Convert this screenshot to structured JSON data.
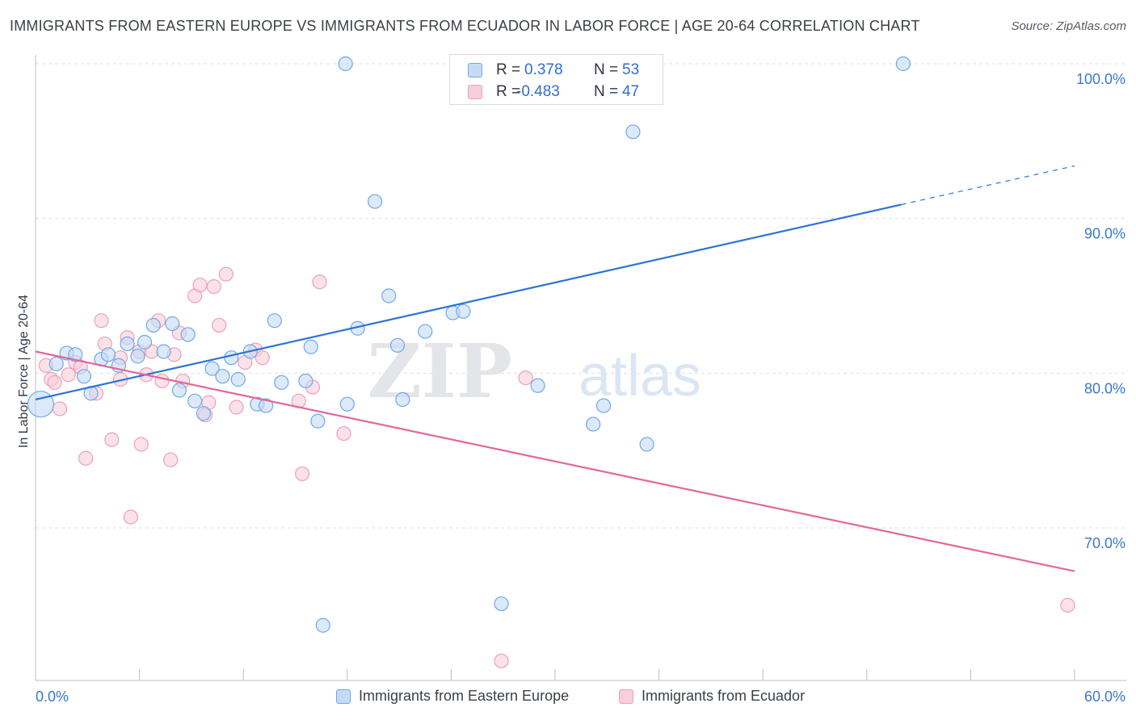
{
  "header": {
    "title": "IMMIGRANTS FROM EASTERN EUROPE VS IMMIGRANTS FROM ECUADOR IN LABOR FORCE | AGE 20-64 CORRELATION CHART",
    "source": "Source: ZipAtlas.com"
  },
  "watermark": {
    "zip": "ZIP",
    "atlas": "atlas"
  },
  "stats_box": {
    "rows": [
      {
        "r_label": "R =",
        "r_value": "0.378",
        "n_label": "N =",
        "n_value": "53",
        "color": "#6fa8e8"
      },
      {
        "r_label": "R =",
        "r_value": "-0.483",
        "n_label": "N =",
        "n_value": "47",
        "color": "#f2a7c0"
      }
    ]
  },
  "legend": {
    "items": [
      {
        "label": "Immigrants from Eastern Europe",
        "color": "#6fa8e8"
      },
      {
        "label": "Immigrants from Ecuador",
        "color": "#f2a7c0"
      }
    ]
  },
  "colors": {
    "blue_fill": "#c5dbf5",
    "blue_stroke": "#6fa8e8",
    "blue_line": "#2b74d4",
    "pink_fill": "#f9cedb",
    "pink_stroke": "#ee9fb9",
    "pink_line": "#e2679a",
    "axis_text": "#3a78cc",
    "grid": "#dcdfe4"
  },
  "chart_data": {
    "type": "scatter",
    "title": "IMMIGRANTS FROM EASTERN EUROPE VS IMMIGRANTS FROM ECUADOR IN LABOR FORCE | AGE 20-64 CORRELATION CHART",
    "xlabel": "",
    "ylabel": "In Labor Force | Age 20-64",
    "xlim": [
      0,
      60
    ],
    "ylim": [
      60.5,
      101.5
    ],
    "x_tick_labels": [
      "0.0%",
      "60.0%"
    ],
    "y_ticks": [
      70,
      80,
      90,
      100
    ],
    "y_tick_labels": [
      "70.0%",
      "80.0%",
      "90.0%",
      "100.0%"
    ],
    "grid": true,
    "legend_position": "bottom",
    "series": [
      {
        "name": "Immigrants from Eastern Europe",
        "r": 0.378,
        "n": 53,
        "trend": {
          "x_start": 0,
          "y_start": 78.3,
          "x_solid_end": 50,
          "y_solid_end": 90.9,
          "x_dash_end": 60,
          "y_dash_end": 93.4
        },
        "points": [
          {
            "x": 0.3,
            "y": 78.0,
            "big": true
          },
          {
            "x": 1.2,
            "y": 80.6
          },
          {
            "x": 1.8,
            "y": 81.3
          },
          {
            "x": 2.3,
            "y": 81.2
          },
          {
            "x": 2.8,
            "y": 79.8
          },
          {
            "x": 3.2,
            "y": 78.7
          },
          {
            "x": 3.8,
            "y": 80.9
          },
          {
            "x": 4.2,
            "y": 81.2
          },
          {
            "x": 4.8,
            "y": 80.5
          },
          {
            "x": 5.3,
            "y": 81.9
          },
          {
            "x": 5.9,
            "y": 81.1
          },
          {
            "x": 6.3,
            "y": 82.0
          },
          {
            "x": 6.8,
            "y": 83.1
          },
          {
            "x": 7.4,
            "y": 81.4
          },
          {
            "x": 7.9,
            "y": 83.2
          },
          {
            "x": 8.3,
            "y": 78.9
          },
          {
            "x": 8.8,
            "y": 82.5
          },
          {
            "x": 9.2,
            "y": 78.2
          },
          {
            "x": 9.7,
            "y": 77.4
          },
          {
            "x": 10.2,
            "y": 80.3
          },
          {
            "x": 10.8,
            "y": 79.8
          },
          {
            "x": 11.3,
            "y": 81.0
          },
          {
            "x": 11.7,
            "y": 79.6
          },
          {
            "x": 12.4,
            "y": 81.4
          },
          {
            "x": 12.8,
            "y": 78.0
          },
          {
            "x": 13.3,
            "y": 77.9
          },
          {
            "x": 13.8,
            "y": 83.4
          },
          {
            "x": 14.2,
            "y": 79.4
          },
          {
            "x": 15.6,
            "y": 79.5
          },
          {
            "x": 15.9,
            "y": 81.7
          },
          {
            "x": 16.3,
            "y": 76.9
          },
          {
            "x": 16.6,
            "y": 63.7
          },
          {
            "x": 17.9,
            "y": 100.0
          },
          {
            "x": 18.0,
            "y": 78.0
          },
          {
            "x": 18.6,
            "y": 82.9
          },
          {
            "x": 19.6,
            "y": 91.1
          },
          {
            "x": 20.4,
            "y": 85.0
          },
          {
            "x": 20.9,
            "y": 81.8
          },
          {
            "x": 21.2,
            "y": 78.3
          },
          {
            "x": 22.5,
            "y": 82.7
          },
          {
            "x": 24.1,
            "y": 83.9
          },
          {
            "x": 24.7,
            "y": 84.0
          },
          {
            "x": 26.9,
            "y": 65.1
          },
          {
            "x": 29.0,
            "y": 79.2
          },
          {
            "x": 31.7,
            "y": 100.0
          },
          {
            "x": 32.2,
            "y": 76.7
          },
          {
            "x": 32.8,
            "y": 77.9
          },
          {
            "x": 34.5,
            "y": 95.6
          },
          {
            "x": 35.3,
            "y": 75.4
          },
          {
            "x": 50.1,
            "y": 100.0
          }
        ]
      },
      {
        "name": "Immigrants from Ecuador",
        "r": -0.483,
        "n": 47,
        "trend": {
          "x_start": 0,
          "y_start": 81.4,
          "x_end": 60,
          "y_end": 67.2
        },
        "points": [
          {
            "x": 0.6,
            "y": 80.5
          },
          {
            "x": 0.9,
            "y": 79.6
          },
          {
            "x": 1.1,
            "y": 79.4
          },
          {
            "x": 1.4,
            "y": 77.7
          },
          {
            "x": 1.9,
            "y": 79.9
          },
          {
            "x": 2.3,
            "y": 80.7
          },
          {
            "x": 2.6,
            "y": 80.4
          },
          {
            "x": 2.9,
            "y": 74.5
          },
          {
            "x": 3.5,
            "y": 78.7
          },
          {
            "x": 3.8,
            "y": 83.4
          },
          {
            "x": 4.0,
            "y": 81.9
          },
          {
            "x": 4.4,
            "y": 75.7
          },
          {
            "x": 4.9,
            "y": 81.0
          },
          {
            "x": 4.9,
            "y": 79.6
          },
          {
            "x": 5.3,
            "y": 82.3
          },
          {
            "x": 5.5,
            "y": 70.7
          },
          {
            "x": 6.0,
            "y": 81.4
          },
          {
            "x": 6.1,
            "y": 75.4
          },
          {
            "x": 6.4,
            "y": 79.9
          },
          {
            "x": 6.7,
            "y": 81.4
          },
          {
            "x": 7.1,
            "y": 83.4
          },
          {
            "x": 7.3,
            "y": 79.5
          },
          {
            "x": 7.8,
            "y": 74.4
          },
          {
            "x": 8.0,
            "y": 81.2
          },
          {
            "x": 8.3,
            "y": 82.6
          },
          {
            "x": 8.5,
            "y": 79.5
          },
          {
            "x": 9.2,
            "y": 85.0
          },
          {
            "x": 9.5,
            "y": 85.7
          },
          {
            "x": 9.8,
            "y": 77.3
          },
          {
            "x": 10.0,
            "y": 78.1
          },
          {
            "x": 10.3,
            "y": 85.6
          },
          {
            "x": 10.6,
            "y": 83.1
          },
          {
            "x": 11.0,
            "y": 86.4
          },
          {
            "x": 11.6,
            "y": 77.8
          },
          {
            "x": 12.1,
            "y": 80.7
          },
          {
            "x": 12.7,
            "y": 81.5
          },
          {
            "x": 13.1,
            "y": 81.0
          },
          {
            "x": 15.2,
            "y": 78.2
          },
          {
            "x": 15.4,
            "y": 73.5
          },
          {
            "x": 16.0,
            "y": 79.1
          },
          {
            "x": 16.4,
            "y": 85.9
          },
          {
            "x": 17.8,
            "y": 76.1
          },
          {
            "x": 26.9,
            "y": 61.4
          },
          {
            "x": 28.3,
            "y": 79.7
          },
          {
            "x": 59.6,
            "y": 65.0
          }
        ]
      }
    ]
  }
}
